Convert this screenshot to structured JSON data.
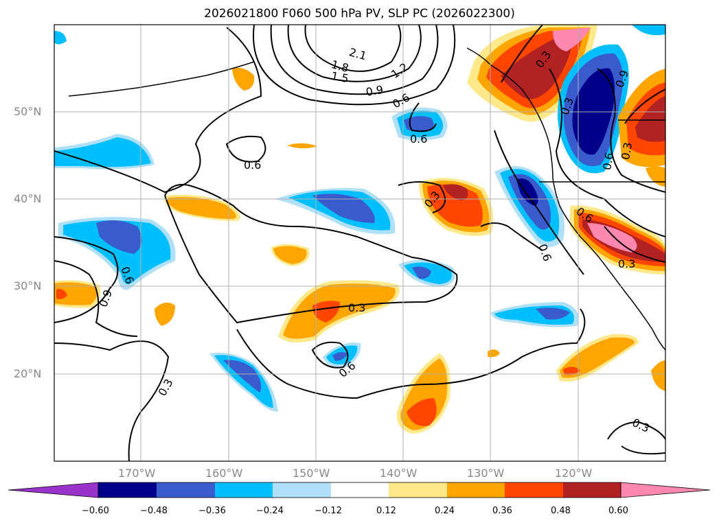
{
  "title": "2026021800 F060 500 hPa PV, SLP PC (2026022300)",
  "lat_ticks": [
    "50°N",
    "40°N",
    "30°N",
    "20°N"
  ],
  "lon_ticks": [
    "170°W",
    "160°W",
    "150°W",
    "140°W",
    "130°W",
    "120°W"
  ],
  "colorbar": {
    "labels": [
      "−0.60",
      "−0.48",
      "−0.36",
      "−0.24",
      "−0.12",
      "0.12",
      "0.24",
      "0.36",
      "0.48",
      "0.60"
    ],
    "colors": {
      "neg_extend": "#9933cc",
      "neg_60": "#00008b",
      "neg_48": "#3a5bcc",
      "neg_36": "#00bfff",
      "neg_24": "#b0e0f8",
      "neutral": "#ffffff",
      "pos_12": "#ffe88a",
      "pos_24": "#ffa500",
      "pos_36": "#ff4500",
      "pos_48": "#b22222",
      "pos_extend": "#ff88b0"
    }
  },
  "contour_labels": [
    "2.1",
    "1.8",
    "1.5",
    "1.2",
    "0.9",
    "0.6",
    "0.6",
    "0.6",
    "0.3",
    "0.3",
    "0.3",
    "0.6",
    "0.9",
    "0.6",
    "0.3",
    "0.6",
    "0.3",
    "0.3",
    "0.9",
    "0.6",
    "0.3",
    "0.6",
    "0.3"
  ]
}
